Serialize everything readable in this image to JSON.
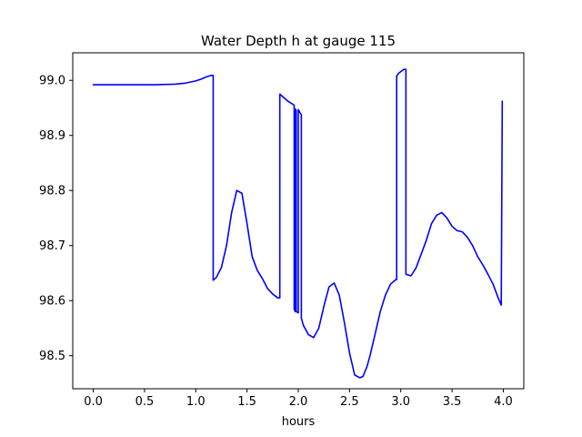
{
  "chart_data": {
    "type": "line",
    "title": "Water Depth h at gauge 115",
    "xlabel": "hours",
    "ylabel": "",
    "xlim": [
      -0.2,
      4.2
    ],
    "ylim": [
      98.44,
      99.05
    ],
    "xticks": [
      0.0,
      0.5,
      1.0,
      1.5,
      2.0,
      2.5,
      3.0,
      3.5,
      4.0
    ],
    "xtick_labels": [
      "0.0",
      "0.5",
      "1.0",
      "1.5",
      "2.0",
      "2.5",
      "3.0",
      "3.5",
      "4.0"
    ],
    "yticks": [
      98.5,
      98.6,
      98.7,
      98.8,
      98.9,
      99.0
    ],
    "ytick_labels": [
      "98.5",
      "98.6",
      "98.7",
      "98.8",
      "98.9",
      "99.0"
    ],
    "grid": false,
    "series": [
      {
        "color": "#0000ff",
        "x": [
          0.0,
          0.3,
          0.6,
          0.8,
          0.9,
          1.0,
          1.05,
          1.1,
          1.15,
          1.17,
          1.17,
          1.2,
          1.25,
          1.3,
          1.35,
          1.4,
          1.45,
          1.5,
          1.55,
          1.6,
          1.65,
          1.7,
          1.75,
          1.8,
          1.82,
          1.82,
          1.85,
          1.9,
          1.96,
          1.96,
          1.97,
          1.97,
          1.98,
          1.98,
          2.0,
          2.0,
          2.02,
          2.03,
          2.03,
          2.05,
          2.1,
          2.15,
          2.2,
          2.25,
          2.3,
          2.35,
          2.4,
          2.45,
          2.5,
          2.55,
          2.6,
          2.63,
          2.67,
          2.7,
          2.75,
          2.8,
          2.85,
          2.9,
          2.95,
          2.96,
          2.96,
          2.98,
          3.03,
          3.05,
          3.05,
          3.1,
          3.15,
          3.2,
          3.25,
          3.3,
          3.35,
          3.4,
          3.45,
          3.5,
          3.55,
          3.6,
          3.65,
          3.7,
          3.75,
          3.8,
          3.85,
          3.9,
          3.95,
          3.98,
          3.98,
          3.99
        ],
        "y": [
          98.992,
          98.992,
          98.992,
          98.993,
          98.995,
          98.999,
          99.002,
          99.006,
          99.009,
          99.009,
          98.637,
          98.642,
          98.66,
          98.7,
          98.76,
          98.8,
          98.795,
          98.74,
          98.68,
          98.655,
          98.64,
          98.622,
          98.612,
          98.605,
          98.605,
          98.975,
          98.97,
          98.962,
          98.955,
          98.585,
          98.58,
          98.948,
          98.945,
          98.58,
          98.578,
          98.947,
          98.94,
          98.938,
          98.568,
          98.555,
          98.538,
          98.533,
          98.55,
          98.59,
          98.625,
          98.632,
          98.61,
          98.56,
          98.505,
          98.465,
          98.46,
          98.462,
          98.48,
          98.5,
          98.54,
          98.58,
          98.61,
          98.63,
          98.638,
          98.638,
          99.008,
          99.013,
          99.02,
          99.02,
          98.648,
          98.645,
          98.66,
          98.685,
          98.71,
          98.74,
          98.755,
          98.76,
          98.75,
          98.735,
          98.727,
          98.725,
          98.715,
          98.7,
          98.68,
          98.665,
          98.648,
          98.63,
          98.605,
          98.592,
          98.592,
          98.962
        ]
      }
    ]
  }
}
